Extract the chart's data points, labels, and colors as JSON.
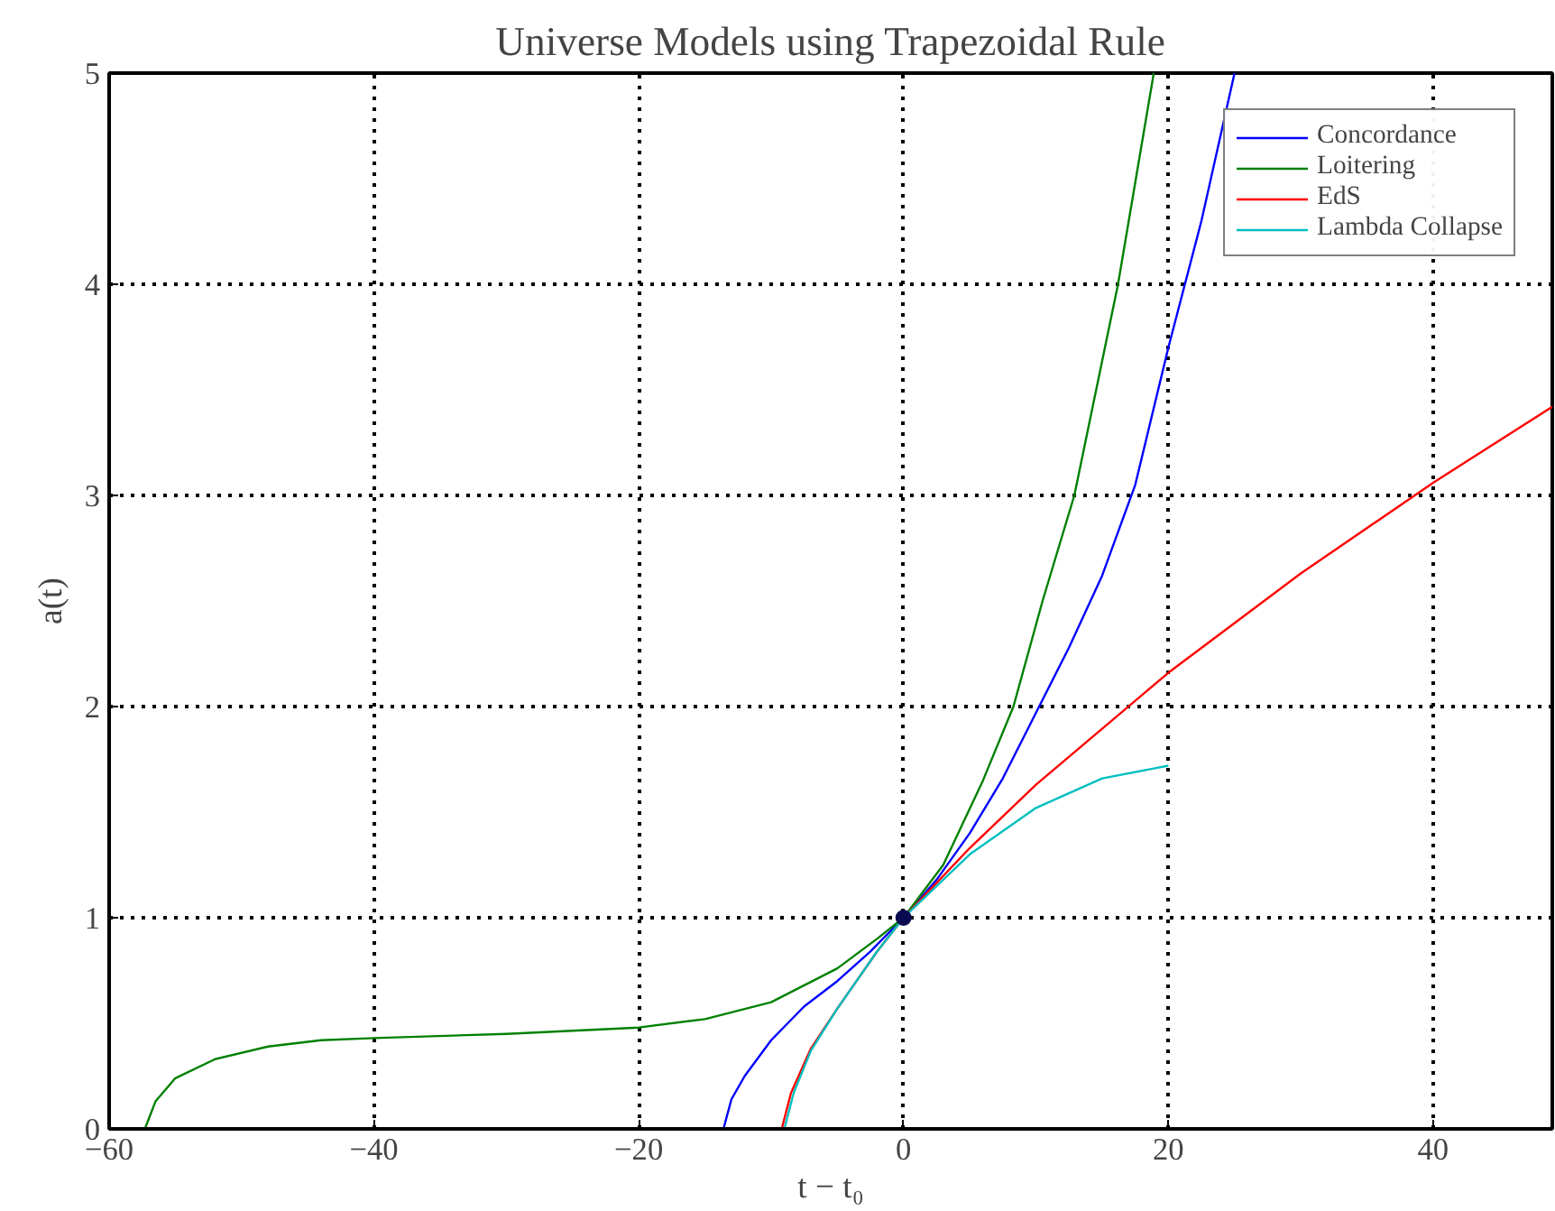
{
  "chart_data": {
    "type": "line",
    "title": "Universe Models using Trapezoidal Rule",
    "xlabel": "t − t₀",
    "ylabel": "a(t)",
    "xlim": [
      -60,
      49
    ],
    "ylim": [
      0,
      5
    ],
    "xticks": [
      -60,
      -40,
      -20,
      0,
      20,
      40
    ],
    "yticks": [
      0,
      1,
      2,
      3,
      4,
      5
    ],
    "grid": true,
    "legend": "top right",
    "line_style": "solid",
    "marker": "none",
    "series": [
      {
        "name": "Concordance",
        "color": "#0000ff",
        "x": [
          -13.6,
          -13,
          -12,
          -10,
          -7.5,
          -5,
          -2.5,
          0,
          2.5,
          5,
          7.5,
          10,
          12.5,
          15,
          17.5,
          20,
          22.5,
          25
        ],
        "values": [
          0,
          0.14,
          0.25,
          0.42,
          0.58,
          0.7,
          0.84,
          1,
          1.18,
          1.4,
          1.66,
          1.97,
          2.28,
          2.62,
          3.05,
          3.7,
          4.3,
          5
        ]
      },
      {
        "name": "Loitering",
        "color": "#008000",
        "x": [
          -57.3,
          -56.5,
          -55,
          -52,
          -48,
          -44,
          -40,
          -30,
          -20,
          -15,
          -10,
          -5,
          -2,
          0,
          3,
          6,
          8.3,
          10.5,
          12.9,
          16.2,
          18.9
        ],
        "values": [
          0,
          0.13,
          0.24,
          0.33,
          0.39,
          0.42,
          0.43,
          0.45,
          0.48,
          0.52,
          0.6,
          0.76,
          0.9,
          1,
          1.25,
          1.65,
          2,
          2.5,
          3,
          4,
          5
        ]
      },
      {
        "name": "EdS",
        "color": "#ff0000",
        "x": [
          -9.2,
          -8.5,
          -7,
          -5,
          -2,
          0,
          5,
          10,
          20,
          30,
          40,
          49
        ],
        "values": [
          0,
          0.17,
          0.38,
          0.57,
          0.84,
          1,
          1.33,
          1.63,
          2.16,
          2.63,
          3.06,
          3.42
        ]
      },
      {
        "name": "Lambda Collapse",
        "color": "#00bfbf",
        "x": [
          -9,
          -8.3,
          -7,
          -5,
          -2,
          0,
          5,
          10,
          15,
          20
        ],
        "values": [
          0,
          0.17,
          0.37,
          0.57,
          0.84,
          1,
          1.3,
          1.52,
          1.66,
          1.72
        ]
      },
      {
        "type": "scatter",
        "marker": "circle",
        "color": "#0a0a50",
        "x": [
          0
        ],
        "values": [
          1
        ]
      }
    ]
  }
}
